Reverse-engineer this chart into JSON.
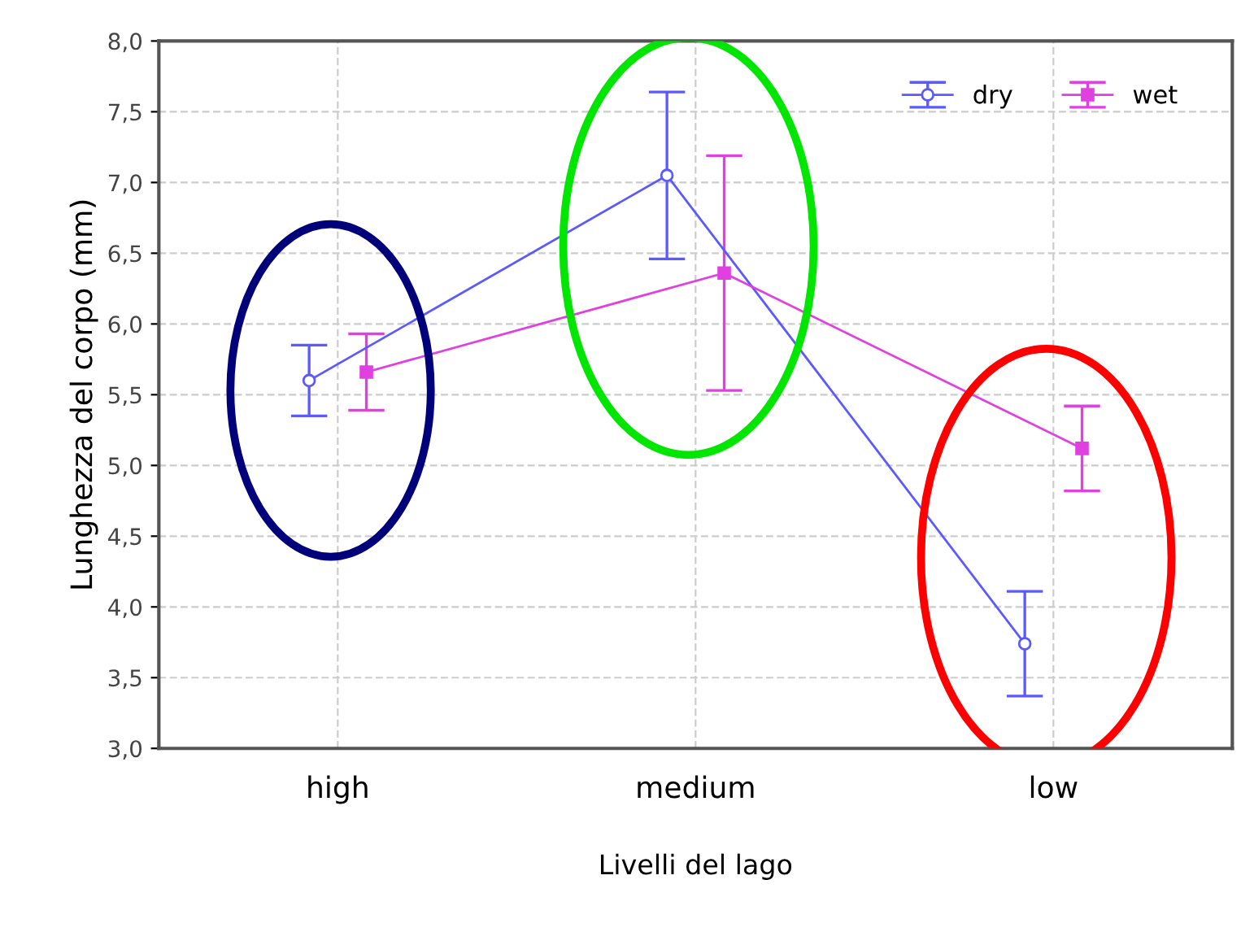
{
  "chart_data": {
    "type": "line",
    "xlabel": "Livelli del lago",
    "ylabel": "Lunghezza del corpo (mm)",
    "categories": [
      "high",
      "medium",
      "low"
    ],
    "series": [
      {
        "name": "dry",
        "color": "#5a5aff",
        "marker": "circle",
        "values": [
          5.6,
          7.05,
          3.74
        ],
        "errors": [
          0.25,
          0.59,
          0.37
        ]
      },
      {
        "name": "wet",
        "color": "#e040e0",
        "marker": "square",
        "values": [
          5.66,
          6.36,
          5.12
        ],
        "errors": [
          0.27,
          0.83,
          0.3
        ]
      }
    ],
    "ylim": [
      3,
      8
    ],
    "yticks": [
      {
        "value": 3,
        "label": "3,0"
      },
      {
        "value": 3.5,
        "label": "3,5"
      },
      {
        "value": 4,
        "label": "4,0"
      },
      {
        "value": 4.5,
        "label": "4,5"
      },
      {
        "value": 5,
        "label": "5,0"
      },
      {
        "value": 5.5,
        "label": "5,5"
      },
      {
        "value": 6,
        "label": "6,0"
      },
      {
        "value": 6.5,
        "label": "6,5"
      },
      {
        "value": 7,
        "label": "7,0"
      },
      {
        "value": 7.5,
        "label": "7,5"
      },
      {
        "value": 8,
        "label": "8,0"
      }
    ],
    "grid": true,
    "legend": "top right",
    "line_style": "solid"
  }
}
